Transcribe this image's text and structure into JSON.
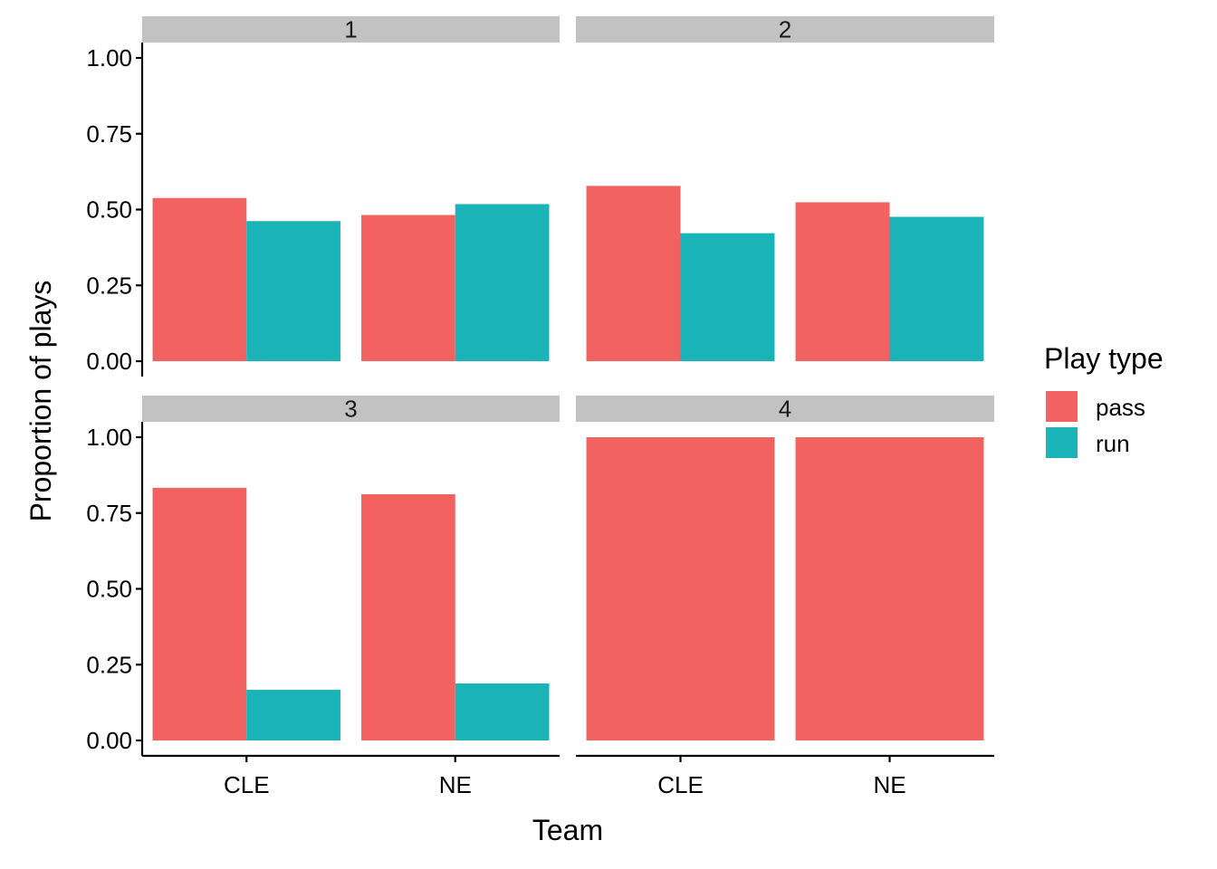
{
  "chart_data": {
    "type": "bar",
    "facet_by": "down",
    "facets": [
      {
        "label": "1",
        "categories": [
          "CLE",
          "NE"
        ],
        "series": [
          {
            "name": "pass",
            "values": [
              0.538,
              0.482
            ]
          },
          {
            "name": "run",
            "values": [
              0.462,
              0.518
            ]
          }
        ]
      },
      {
        "label": "2",
        "categories": [
          "CLE",
          "NE"
        ],
        "series": [
          {
            "name": "pass",
            "values": [
              0.578,
              0.524
            ]
          },
          {
            "name": "run",
            "values": [
              0.422,
              0.476
            ]
          }
        ]
      },
      {
        "label": "3",
        "categories": [
          "CLE",
          "NE"
        ],
        "series": [
          {
            "name": "pass",
            "values": [
              0.833,
              0.812
            ]
          },
          {
            "name": "run",
            "values": [
              0.167,
              0.188
            ]
          }
        ]
      },
      {
        "label": "4",
        "categories": [
          "CLE",
          "NE"
        ],
        "series": [
          {
            "name": "pass",
            "values": [
              1.0,
              1.0
            ]
          },
          {
            "name": "run",
            "values": [
              0,
              0
            ]
          }
        ]
      }
    ],
    "xlabel": "Team",
    "ylabel": "Proportion of plays",
    "ylim": [
      0,
      1.05
    ],
    "yticks": [
      "0.00",
      "0.25",
      "0.50",
      "0.75",
      "1.00"
    ],
    "grid": false,
    "legend": {
      "title": "Play type",
      "placement": "right",
      "entries": [
        {
          "name": "pass",
          "color": "#F26260"
        },
        {
          "name": "run",
          "color": "#1AB3B8"
        }
      ]
    },
    "colors": {
      "strip": "#C2C2C2"
    }
  }
}
